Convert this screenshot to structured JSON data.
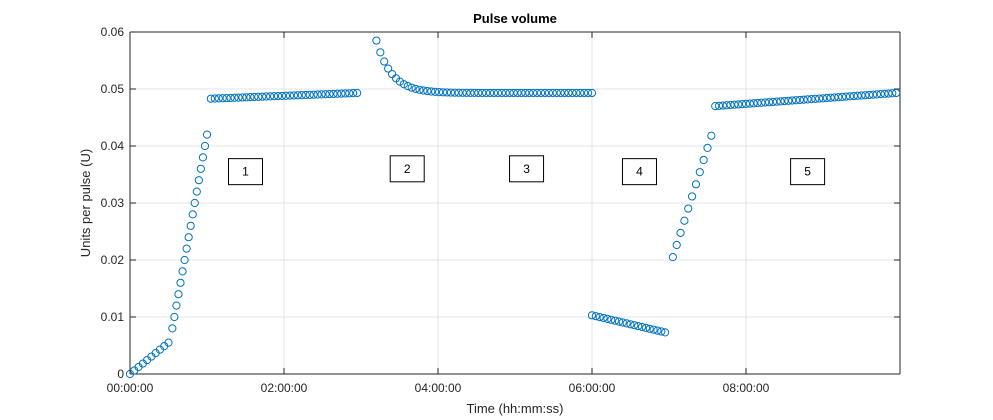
{
  "chart_data": {
    "type": "scatter",
    "title": "Pulse volume",
    "xlabel": "Time (hh:mm:ss)",
    "ylabel": "Units per pulse (U)",
    "xlim": [
      "00:00:00",
      "10:00:00"
    ],
    "ylim": [
      0,
      0.06
    ],
    "x_ticks": [
      "00:00:00",
      "02:00:00",
      "04:00:00",
      "06:00:00",
      "08:00:00"
    ],
    "y_ticks": [
      "0",
      "0.01",
      "0.02",
      "0.03",
      "0.04",
      "0.05",
      "0.06"
    ],
    "grid": true,
    "marker": "open-circle",
    "marker_color": "#0072BD",
    "annotations": [
      {
        "label": "1",
        "x": "01:30:00",
        "y": 0.0355
      },
      {
        "label": "2",
        "x": "03:36:00",
        "y": 0.036
      },
      {
        "label": "3",
        "x": "05:09:00",
        "y": 0.036
      },
      {
        "label": "4",
        "x": "06:37:00",
        "y": 0.0355
      },
      {
        "label": "5",
        "x": "08:48:00",
        "y": 0.0355
      }
    ],
    "segments": [
      {
        "x_start": "00:00:00",
        "x_end": "00:30:00",
        "y_start": 0.0,
        "y_end": 0.0055,
        "count": 10
      },
      {
        "x_start": "00:33:00",
        "x_end": "01:00:00",
        "y_start": 0.008,
        "y_end": 0.042,
        "count": 18
      },
      {
        "x_start": "01:03:00",
        "x_end": "02:57:00",
        "y_start": 0.0483,
        "y_end": 0.0493,
        "count": 38
      },
      {
        "x_start": "03:12:00",
        "x_end": "06:00:00",
        "y_start": 0.0585,
        "y_end": 0.0493,
        "decay": true,
        "count": 56
      },
      {
        "x_start": "06:00:00",
        "x_end": "06:57:00",
        "y_start": 0.0103,
        "y_end": 0.0073,
        "count": 20
      },
      {
        "x_start": "07:03:00",
        "x_end": "07:33:00",
        "y_start": 0.0205,
        "y_end": 0.0418,
        "count": 11
      },
      {
        "x_start": "07:36:00",
        "x_end": "09:57:00",
        "y_start": 0.047,
        "y_end": 0.0493,
        "count": 48
      }
    ]
  }
}
